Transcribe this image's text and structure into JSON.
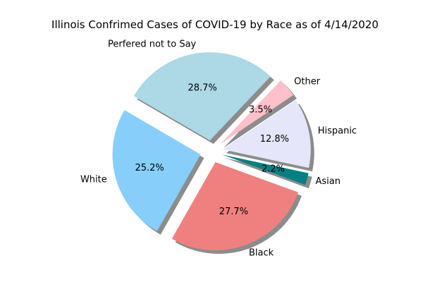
{
  "chart_data": {
    "type": "pie",
    "title": "Illinois Confrimed Cases of COVID-19 by Race as of 4/14/2020",
    "slices": [
      {
        "label": "Asian",
        "value": 2.2,
        "pct_label": "2.2%",
        "color": "#008080"
      },
      {
        "label": "Hispanic",
        "value": 12.8,
        "pct_label": "12.8%",
        "color": "#e6e6fa"
      },
      {
        "label": "Other",
        "value": 3.5,
        "pct_label": "3.5%",
        "color": "#ffc0cb"
      },
      {
        "label": "Perfered not to Say",
        "value": 28.7,
        "pct_label": "28.7%",
        "color": "#add8e6"
      },
      {
        "label": "White",
        "value": 25.2,
        "pct_label": "25.2%",
        "color": "#87cefa"
      },
      {
        "label": "Black",
        "value": 27.7,
        "pct_label": "27.7%",
        "color": "#f08080"
      }
    ],
    "start_angle_deg": -20,
    "direction": "counterclockwise",
    "exploded": true,
    "shadow": true,
    "legend": "none"
  }
}
